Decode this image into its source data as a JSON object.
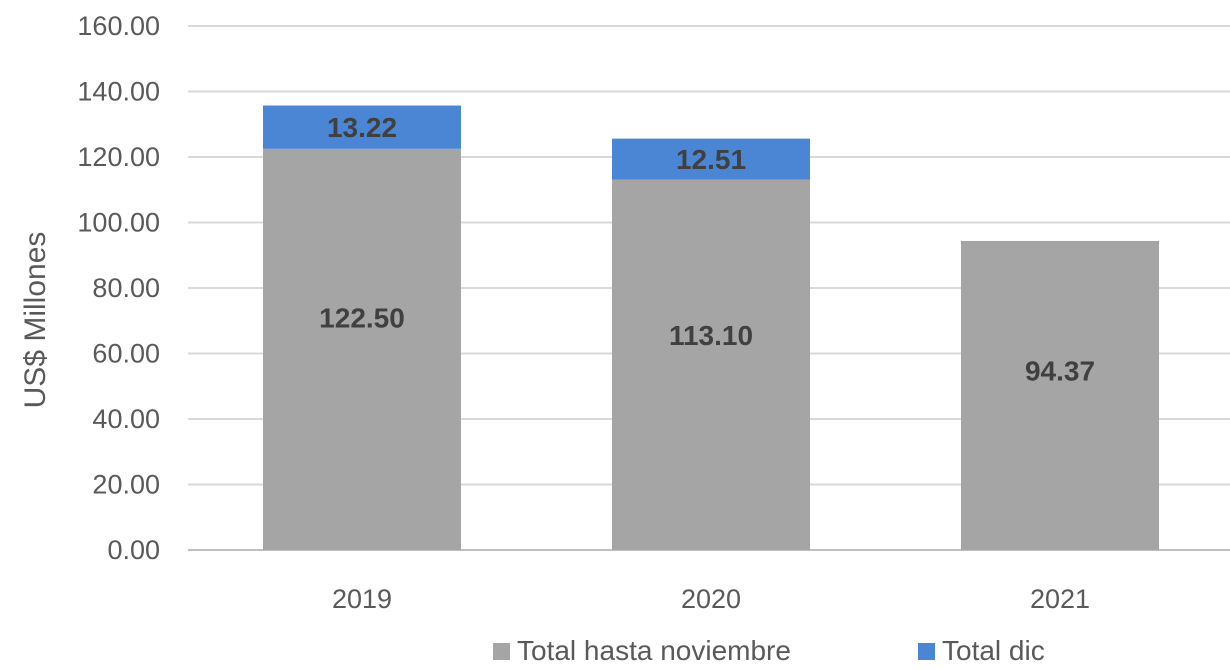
{
  "chart_data": {
    "type": "bar",
    "stacked": true,
    "categories": [
      "2019",
      "2020",
      "2021"
    ],
    "series": [
      {
        "name": "Total hasta noviembre",
        "values": [
          122.5,
          113.1,
          94.37
        ],
        "labels": [
          "122.50",
          "113.10",
          "94.37"
        ],
        "color": "#a5a5a5"
      },
      {
        "name": "Total dic",
        "values": [
          13.22,
          12.51,
          null
        ],
        "labels": [
          "13.22",
          "12.51",
          ""
        ],
        "color": "#4a86d4"
      }
    ],
    "ylabel": "US$ Millones",
    "xlabel": "",
    "ylim": [
      0,
      160
    ],
    "yticks": [
      "0.00",
      "20.00",
      "40.00",
      "60.00",
      "80.00",
      "100.00",
      "120.00",
      "140.00",
      "160.00"
    ],
    "grid": true,
    "legend": "bottom"
  }
}
